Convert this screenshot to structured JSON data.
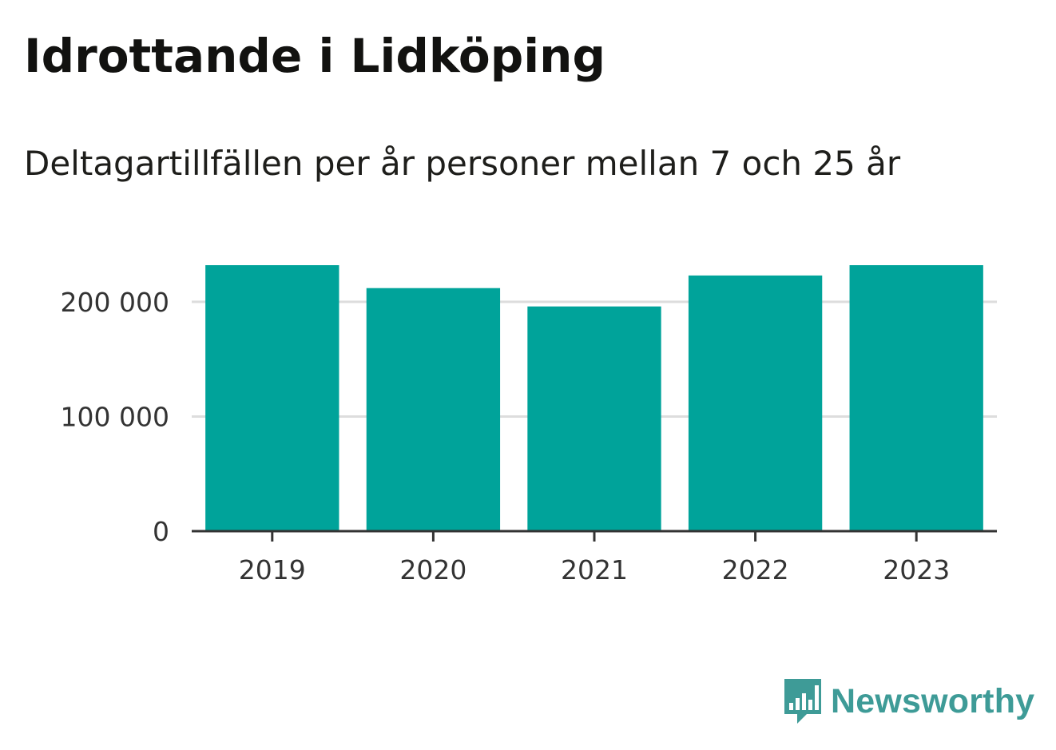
{
  "chart_data": {
    "type": "bar",
    "title": "Idrottande i Lidköping",
    "subtitle": "Deltagartillfällen per år personer mellan 7 och 25 år",
    "categories": [
      "2019",
      "2020",
      "2021",
      "2022",
      "2023"
    ],
    "values": [
      232000,
      212000,
      196000,
      223000,
      232000
    ],
    "xlabel": "",
    "ylabel": "",
    "ylim": [
      0,
      232000
    ],
    "yticks": [
      0,
      100000,
      200000
    ],
    "ytick_labels": [
      "0",
      "100 000",
      "200 000"
    ],
    "grid": true,
    "legend": "none",
    "bar_color": "#00a39a",
    "gridline_color": "#dddddd",
    "axis_color": "#333333"
  },
  "brand": {
    "name": "Newsworthy",
    "color": "#3e9b97",
    "icon": "newsworthy-logo-icon"
  }
}
